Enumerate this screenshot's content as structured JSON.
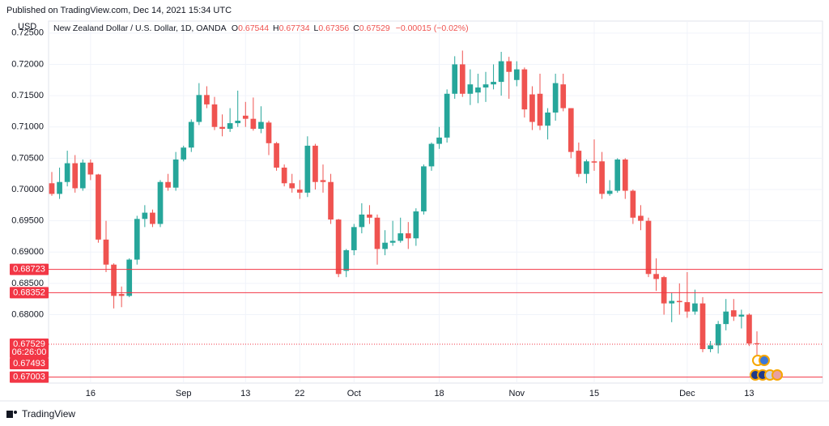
{
  "header": {
    "published": "Published on TradingView.com, Dec 14, 2021 15:34 UTC",
    "brand": "TradingView"
  },
  "chart_data": {
    "type": "candlestick",
    "title": "New Zealand Dollar / U.S. Dollar, 1D, OANDA",
    "currency": "USD",
    "legend": {
      "o_label": "O",
      "o": "0.67544",
      "h_label": "H",
      "h": "0.67734",
      "l_label": "L",
      "l": "0.67356",
      "c_label": "C",
      "c": "0.67529",
      "change": "−0.00015 (−0.02%)"
    },
    "up_color": "#26a69a",
    "down_color": "#ef5350",
    "line_color": "#f23645",
    "categories": [
      null,
      null,
      null,
      null,
      null,
      "16",
      null,
      null,
      null,
      null,
      null,
      null,
      null,
      null,
      null,
      null,
      null,
      "Sep",
      null,
      null,
      null,
      null,
      null,
      null,
      null,
      "13",
      null,
      null,
      null,
      null,
      null,
      null,
      "22",
      null,
      null,
      null,
      null,
      null,
      null,
      "Oct",
      null,
      null,
      null,
      null,
      null,
      null,
      null,
      null,
      null,
      null,
      "18",
      null,
      null,
      null,
      null,
      null,
      null,
      null,
      null,
      null,
      "Nov",
      null,
      null,
      null,
      null,
      null,
      null,
      null,
      null,
      null,
      "15",
      null,
      null,
      null,
      null,
      null,
      null,
      null,
      null,
      null,
      null,
      null,
      "Dec",
      null,
      null,
      null,
      null,
      null,
      null,
      null,
      "13",
      null
    ],
    "open": [
      0.701,
      0.6993,
      0.7012,
      0.7042,
      0.7002,
      0.7043,
      0.7024,
      0.692,
      0.688,
      0.6833,
      0.683,
      0.6888,
      0.6953,
      0.6963,
      0.6945,
      0.7012,
      0.7003,
      0.7048,
      0.7067,
      0.7108,
      0.7151,
      0.7136,
      0.71,
      0.7097,
      0.7106,
      0.7118,
      0.7113,
      0.7097,
      0.7107,
      0.7074,
      0.7035,
      0.701,
      0.7,
      0.6995,
      0.707,
      0.7015,
      0.7012,
      0.6952,
      0.687,
      0.6903,
      0.694,
      0.696,
      0.6955,
      0.6905,
      0.6915,
      0.6918,
      0.693,
      0.6922,
      0.6965,
      0.7037,
      0.7073,
      0.7083,
      0.7153,
      0.72,
      0.7153,
      0.7155,
      0.7163,
      0.7168,
      0.7172,
      0.7205,
      0.7175,
      0.7192,
      0.7152,
      0.7153,
      0.7102,
      0.7123,
      0.7168,
      0.713,
      0.7062,
      0.7025,
      0.7045,
      0.7045,
      0.6993,
      0.6998,
      0.7048,
      0.6998,
      0.6958,
      0.695,
      0.6865,
      0.686,
      0.6818,
      0.6822,
      0.682,
      0.6805,
      0.6818,
      0.6745,
      0.6751,
      0.6785,
      0.6807,
      0.6797,
      0.68,
      0.67544
    ],
    "high": [
      0.7028,
      0.7035,
      0.7062,
      0.7055,
      0.7048,
      0.7048,
      0.7025,
      0.695,
      0.6882,
      0.6845,
      0.689,
      0.6958,
      0.6975,
      0.6968,
      0.7015,
      0.7025,
      0.706,
      0.707,
      0.7112,
      0.717,
      0.7165,
      0.7148,
      0.712,
      0.713,
      0.7158,
      0.714,
      0.7147,
      0.7133,
      0.711,
      0.7076,
      0.704,
      0.7025,
      0.7015,
      0.7085,
      0.7073,
      0.704,
      0.7025,
      0.6953,
      0.6905,
      0.6945,
      0.6978,
      0.6975,
      0.696,
      0.6935,
      0.695,
      0.6955,
      0.6948,
      0.697,
      0.704,
      0.7075,
      0.71,
      0.716,
      0.7213,
      0.7222,
      0.7192,
      0.7185,
      0.7188,
      0.72,
      0.722,
      0.7212,
      0.7205,
      0.7195,
      0.7165,
      0.7185,
      0.713,
      0.7185,
      0.7185,
      0.713,
      0.7075,
      0.7048,
      0.708,
      0.706,
      0.7015,
      0.705,
      0.705,
      0.7,
      0.6975,
      0.6955,
      0.689,
      0.6862,
      0.6835,
      0.685,
      0.6868,
      0.684,
      0.6828,
      0.6758,
      0.679,
      0.6825,
      0.6825,
      0.6808,
      0.6802,
      0.67734
    ],
    "low": [
      0.699,
      0.6985,
      0.7005,
      0.6995,
      0.6998,
      0.7015,
      0.6915,
      0.6868,
      0.681,
      0.6812,
      0.6828,
      0.688,
      0.694,
      0.694,
      0.694,
      0.6998,
      0.6998,
      0.7045,
      0.706,
      0.7103,
      0.713,
      0.7095,
      0.7085,
      0.7092,
      0.71,
      0.71,
      0.7094,
      0.709,
      0.7055,
      0.703,
      0.7005,
      0.6995,
      0.6985,
      0.6988,
      0.7,
      0.6995,
      0.6945,
      0.686,
      0.686,
      0.6895,
      0.693,
      0.6945,
      0.688,
      0.6895,
      0.691,
      0.6915,
      0.6905,
      0.691,
      0.696,
      0.703,
      0.7065,
      0.7075,
      0.7145,
      0.7148,
      0.7135,
      0.7138,
      0.714,
      0.716,
      0.715,
      0.7145,
      0.7165,
      0.7115,
      0.7095,
      0.7095,
      0.708,
      0.711,
      0.7125,
      0.705,
      0.702,
      0.701,
      0.703,
      0.6985,
      0.699,
      0.6995,
      0.6985,
      0.6945,
      0.6935,
      0.686,
      0.6838,
      0.68,
      0.6788,
      0.68,
      0.6795,
      0.68,
      0.674,
      0.674,
      0.6738,
      0.6775,
      0.679,
      0.6778,
      0.675,
      0.67356
    ],
    "close": [
      0.6993,
      0.7012,
      0.7042,
      0.7002,
      0.7043,
      0.7024,
      0.692,
      0.688,
      0.683,
      0.683,
      0.6888,
      0.6953,
      0.6963,
      0.6945,
      0.7012,
      0.7003,
      0.7048,
      0.7067,
      0.7108,
      0.7151,
      0.7136,
      0.71,
      0.7097,
      0.7106,
      0.711,
      0.7113,
      0.7097,
      0.7108,
      0.7074,
      0.7035,
      0.701,
      0.7002,
      0.6995,
      0.707,
      0.7012,
      0.7012,
      0.6952,
      0.6865,
      0.6903,
      0.694,
      0.696,
      0.6955,
      0.6905,
      0.6915,
      0.6918,
      0.693,
      0.6922,
      0.6965,
      0.7037,
      0.7073,
      0.7083,
      0.7153,
      0.72,
      0.7153,
      0.7168,
      0.7163,
      0.7168,
      0.7172,
      0.7205,
      0.7188,
      0.7192,
      0.7128,
      0.7108,
      0.7102,
      0.7123,
      0.717,
      0.713,
      0.706,
      0.7025,
      0.7045,
      0.7043,
      0.6993,
      0.6998,
      0.7048,
      0.6998,
      0.6955,
      0.695,
      0.6865,
      0.6857,
      0.6818,
      0.6822,
      0.682,
      0.6805,
      0.6818,
      0.6745,
      0.6751,
      0.6785,
      0.6805,
      0.6797,
      0.68,
      0.6754,
      0.67529
    ],
    "ylim": [
      0.6692,
      0.7264
    ],
    "yticks": [
      {
        "value": 0.725,
        "label": "0.72500"
      },
      {
        "value": 0.72,
        "label": "0.72000"
      },
      {
        "value": 0.715,
        "label": "0.71500"
      },
      {
        "value": 0.71,
        "label": "0.71000"
      },
      {
        "value": 0.705,
        "label": "0.70500"
      },
      {
        "value": 0.7,
        "label": "0.70000"
      },
      {
        "value": 0.695,
        "label": "0.69500"
      },
      {
        "value": 0.69,
        "label": "0.69000"
      },
      {
        "value": 0.685,
        "label": "0.68500"
      },
      {
        "value": 0.68,
        "label": "0.68000"
      }
    ],
    "price_lines": [
      0.68723,
      0.68352,
      0.67003
    ],
    "last_price": 0.67529,
    "countdown": "06:26:00",
    "bid_price": 0.67493,
    "grid": true
  }
}
